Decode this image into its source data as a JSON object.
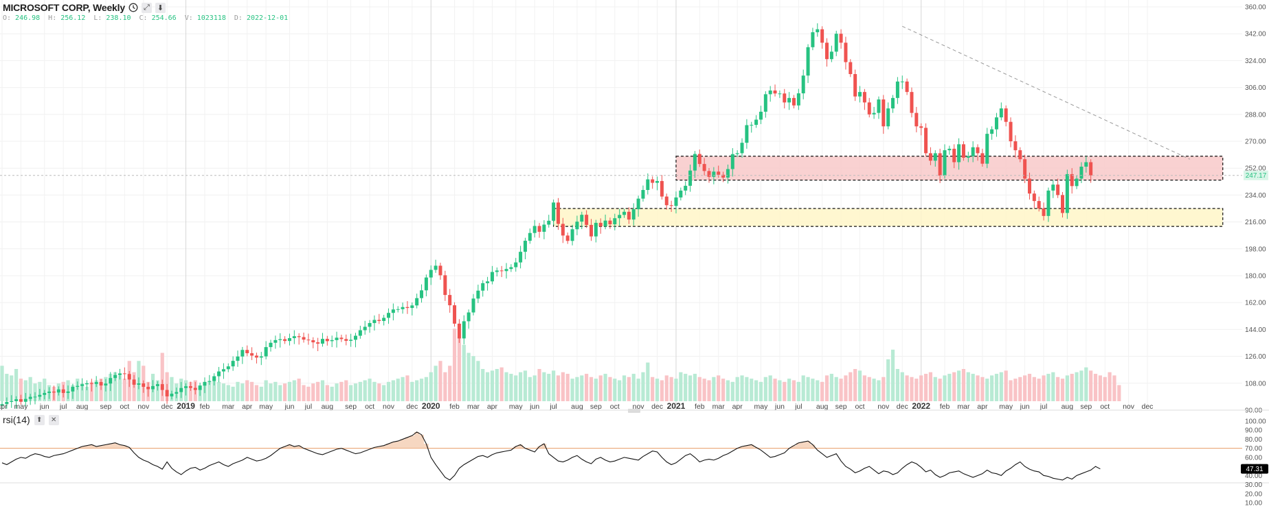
{
  "header": {
    "title": "MICROSOFT CORP, Weekly",
    "icons": [
      "clock-icon",
      "expand-icon",
      "download-icon"
    ],
    "ohlc": [
      {
        "key": "O:",
        "value": "246.98"
      },
      {
        "key": "H:",
        "value": "256.12"
      },
      {
        "key": "L:",
        "value": "238.10"
      },
      {
        "key": "C:",
        "value": "254.66"
      },
      {
        "key": "V:",
        "value": "1023118"
      },
      {
        "key": "D:",
        "value": "2022-12-01"
      }
    ]
  },
  "indicator": {
    "label": "rsi(14)",
    "current_value": "47.31",
    "icons": [
      "arrow-up-icon",
      "close-icon"
    ]
  },
  "colors": {
    "up": "#26c281",
    "down": "#ef5350",
    "volume_up": "#b8ead4",
    "volume_down": "#f9c3c6",
    "resistance_zone": "#f8c9c9",
    "support_zone": "#fff6c8"
  },
  "chart_data": {
    "type": "candlestick",
    "title": "MICROSOFT CORP, Weekly",
    "price_axis": {
      "ylim": [
        90,
        360
      ],
      "ticks": [
        "90.00",
        "108.00",
        "126.00",
        "144.00",
        "162.00",
        "180.00",
        "198.00",
        "216.00",
        "234.00",
        "252.00",
        "270.00",
        "288.00",
        "306.00",
        "324.00",
        "342.00",
        "360.00"
      ]
    },
    "price_label": "247.17",
    "time_axis": {
      "labels": [
        "apr",
        "may",
        "jun",
        "jul",
        "aug",
        "sep",
        "oct",
        "nov",
        "dec",
        "2019",
        "feb",
        "mar",
        "apr",
        "may",
        "jun",
        "jul",
        "aug",
        "sep",
        "oct",
        "nov",
        "dec",
        "2020",
        "feb",
        "mar",
        "apr",
        "may",
        "jun",
        "jul",
        "aug",
        "sep",
        "oct",
        "nov",
        "dec",
        "2021",
        "feb",
        "mar",
        "apr",
        "may",
        "jun",
        "jul",
        "aug",
        "sep",
        "oct",
        "nov",
        "dec",
        "2022",
        "feb",
        "mar",
        "apr",
        "may",
        "jun",
        "jul",
        "aug",
        "sep",
        "oct",
        "nov",
        "dec"
      ],
      "start_week": 0,
      "week_positions": [
        0,
        4,
        9,
        13,
        17,
        22,
        26,
        30,
        35,
        39,
        43,
        48,
        52,
        56,
        61,
        65,
        69,
        74,
        78,
        82,
        87,
        91,
        96,
        100,
        104,
        109,
        113,
        117,
        122,
        126,
        130,
        135,
        139,
        143,
        148,
        152,
        156,
        161,
        165,
        169,
        174,
        178,
        182,
        187,
        191,
        195,
        200,
        204,
        208,
        213,
        217,
        221,
        226,
        230,
        234,
        239,
        243
      ],
      "separator_labels": [
        "2019",
        "2020",
        "2021",
        "2022"
      ]
    },
    "ohlc_close": [
      94.0,
      95.5,
      96.0,
      97.3,
      95.6,
      97.5,
      98.9,
      99.0,
      100.2,
      101.5,
      102.4,
      101.8,
      103.9,
      101.5,
      102.5,
      105.6,
      106.2,
      107.3,
      108.0,
      107.5,
      108.8,
      106.5,
      107.8,
      111.5,
      113.5,
      114.6,
      114.2,
      110.5,
      107.0,
      107.9,
      105.6,
      104.0,
      106.1,
      107.4,
      103.5,
      99.2,
      101.0,
      102.1,
      104.8,
      106.0,
      104.9,
      103.5,
      106.4,
      108.9,
      109.5,
      112.7,
      115.9,
      117.4,
      119.3,
      123.0,
      125.9,
      130.3,
      128.1,
      126.5,
      125.2,
      126.0,
      132.2,
      135.1,
      136.9,
      137.5,
      136.3,
      138.2,
      139.5,
      138.9,
      137.2,
      136.8,
      135.4,
      134.5,
      137.7,
      136.2,
      136.9,
      138.5,
      137.6,
      136.4,
      137.1,
      139.8,
      143.5,
      145.8,
      148.3,
      150.4,
      149.7,
      151.8,
      155.1,
      157.4,
      157.6,
      159.0,
      158.4,
      160.1,
      165.0,
      170.2,
      178.8,
      183.9,
      186.7,
      180.3,
      167.1,
      160.2,
      147.9,
      138.0,
      149.5,
      155.4,
      164.7,
      170.0,
      175.0,
      176.2,
      182.5,
      183.5,
      183.1,
      184.5,
      185.7,
      188.9,
      196.0,
      203.4,
      208.6,
      213.3,
      209.4,
      214.2,
      216.8,
      229.0,
      214.7,
      206.9,
      203.3,
      211.1,
      216.2,
      220.8,
      214.0,
      206.3,
      215.4,
      213.1,
      216.9,
      214.4,
      218.5,
      220.7,
      222.8,
      217.6,
      224.5,
      231.6,
      237.4,
      244.5,
      242.2,
      243.4,
      233.0,
      227.2,
      226.7,
      232.4,
      237.0,
      240.2,
      250.4,
      261.5,
      254.8,
      250.1,
      246.2,
      249.7,
      247.6,
      245.7,
      251.4,
      261.4,
      262.0,
      269.0,
      280.8,
      281.0,
      284.5,
      289.8,
      301.5,
      304.0,
      302.0,
      302.0,
      296.0,
      299.0,
      294.0,
      302.1,
      314.0,
      333.0,
      343.0,
      345.0,
      336.0,
      325.0,
      330.0,
      342.0,
      336.0,
      323.0,
      315.0,
      300.0,
      303.0,
      296.0,
      288.0,
      289.0,
      298.0,
      280.0,
      292.0,
      299.0,
      310.0,
      310.0,
      303.0,
      289.0,
      280.0,
      279.0,
      262.0,
      257.0,
      262.0,
      247.0,
      264.0,
      265.0,
      256.0,
      268.0,
      259.0,
      260.0,
      266.0,
      262.0,
      255.0,
      275.0,
      278.0,
      286.0,
      292.0,
      283.0,
      270.0,
      264.0,
      258.0,
      245.0,
      235.0,
      230.0,
      225.0,
      220.0,
      237.0,
      241.0,
      234.0,
      222.0,
      248.0,
      240.0,
      245.0,
      253.0,
      256.0,
      247.2
    ],
    "ohlc_open": [
      93.0,
      94.0,
      95.5,
      96.0,
      97.3,
      95.6,
      97.5,
      98.9,
      99.0,
      100.2,
      101.5,
      102.4,
      101.8,
      103.9,
      101.5,
      102.5,
      105.6,
      106.2,
      107.3,
      108.0,
      107.5,
      108.8,
      106.5,
      107.8,
      111.5,
      113.5,
      114.6,
      114.2,
      110.5,
      107.0,
      107.9,
      105.6,
      104.0,
      106.1,
      107.4,
      103.5,
      99.2,
      101.0,
      102.1,
      104.8,
      106.0,
      104.9,
      103.5,
      106.4,
      108.9,
      109.5,
      112.7,
      115.9,
      117.4,
      119.3,
      123.0,
      125.9,
      130.3,
      128.1,
      126.5,
      125.2,
      126.0,
      132.2,
      135.1,
      136.9,
      137.5,
      136.3,
      138.2,
      139.5,
      138.9,
      137.2,
      136.8,
      135.4,
      134.5,
      137.7,
      136.2,
      136.9,
      138.5,
      137.6,
      136.4,
      137.1,
      139.8,
      143.5,
      145.8,
      148.3,
      150.4,
      149.7,
      151.8,
      155.1,
      157.4,
      157.6,
      159.0,
      158.4,
      160.1,
      165.0,
      170.2,
      178.8,
      183.9,
      186.7,
      180.3,
      167.1,
      160.2,
      147.9,
      138.0,
      149.5,
      155.4,
      164.7,
      170.0,
      175.0,
      176.2,
      182.5,
      183.5,
      183.1,
      184.5,
      185.7,
      188.9,
      196.0,
      203.4,
      208.6,
      213.3,
      209.4,
      214.2,
      216.8,
      229.0,
      214.7,
      206.9,
      203.3,
      211.1,
      216.2,
      220.8,
      214.0,
      206.3,
      215.4,
      213.1,
      216.9,
      214.4,
      218.5,
      220.7,
      222.8,
      217.6,
      224.5,
      231.6,
      237.4,
      244.5,
      242.2,
      243.4,
      233.0,
      227.2,
      226.7,
      232.4,
      237.0,
      240.2,
      250.4,
      261.5,
      254.8,
      250.1,
      246.2,
      249.7,
      247.6,
      245.7,
      251.4,
      261.4,
      262.0,
      269.0,
      280.8,
      281.0,
      284.5,
      289.8,
      301.5,
      304.0,
      302.0,
      302.0,
      296.0,
      299.0,
      294.0,
      302.1,
      314.0,
      333.0,
      343.0,
      345.0,
      336.0,
      325.0,
      330.0,
      342.0,
      336.0,
      323.0,
      315.0,
      300.0,
      303.0,
      296.0,
      288.0,
      289.0,
      298.0,
      280.0,
      292.0,
      299.0,
      310.0,
      310.0,
      303.0,
      289.0,
      280.0,
      279.0,
      262.0,
      257.0,
      262.0,
      247.0,
      264.0,
      265.0,
      256.0,
      268.0,
      259.0,
      260.0,
      266.0,
      262.0,
      255.0,
      275.0,
      278.0,
      286.0,
      292.0,
      283.0,
      270.0,
      264.0,
      258.0,
      245.0,
      235.0,
      230.0,
      225.0,
      220.0,
      237.0,
      241.0,
      234.0,
      222.0,
      248.0,
      240.0,
      245.0,
      253.0,
      256.0
    ],
    "volume": [
      22,
      17,
      16,
      20,
      14,
      13,
      15,
      11,
      12,
      14,
      10,
      9,
      11,
      12,
      13,
      10,
      14,
      11,
      9,
      12,
      13,
      14,
      15,
      17,
      18,
      16,
      14,
      25,
      18,
      25,
      22,
      12,
      17,
      13,
      30,
      18,
      15,
      11,
      14,
      13,
      12,
      13,
      10,
      11,
      12,
      14,
      12,
      11,
      10,
      9,
      12,
      11,
      13,
      12,
      10,
      9,
      13,
      11,
      12,
      10,
      11,
      12,
      13,
      14,
      10,
      9,
      11,
      12,
      13,
      10,
      9,
      11,
      12,
      13,
      10,
      11,
      12,
      13,
      14,
      12,
      11,
      10,
      12,
      13,
      14,
      15,
      16,
      12,
      13,
      14,
      15,
      18,
      22,
      25,
      18,
      22,
      45,
      40,
      35,
      30,
      28,
      25,
      20,
      18,
      19,
      20,
      21,
      18,
      17,
      16,
      18,
      19,
      15,
      16,
      20,
      18,
      17,
      19,
      16,
      18,
      17,
      14,
      15,
      16,
      17,
      15,
      14,
      16,
      17,
      15,
      14,
      13,
      16,
      15,
      17,
      14,
      18,
      24,
      15,
      14,
      13,
      16,
      15,
      14,
      18,
      17,
      16,
      17,
      15,
      14,
      13,
      15,
      16,
      14,
      13,
      12,
      15,
      16,
      15,
      14,
      13,
      12,
      15,
      16,
      14,
      13,
      12,
      14,
      13,
      12,
      16,
      15,
      14,
      13,
      12,
      16,
      17,
      15,
      14,
      16,
      18,
      20,
      19,
      16,
      15,
      14,
      13,
      15,
      26,
      32,
      20,
      18,
      16,
      15,
      14,
      16,
      17,
      18,
      15,
      14,
      16,
      17,
      18,
      19,
      20,
      18,
      17,
      16,
      15,
      14,
      16,
      17,
      18,
      19,
      13,
      14,
      15,
      16,
      17,
      15,
      14,
      16,
      17,
      18,
      15,
      14,
      16,
      17,
      18,
      19,
      21,
      19,
      17,
      16,
      15,
      18,
      16,
      10
    ],
    "support_resistance_zones": [
      {
        "name": "resistance",
        "from_week": 143,
        "to_week": 259,
        "low": 244,
        "high": 260
      },
      {
        "name": "support",
        "from_week": 117,
        "to_week": 259,
        "low": 213,
        "high": 225
      }
    ],
    "trendline": {
      "from_week": 191,
      "from_price": 347,
      "to_week": 252,
      "to_price": 258
    },
    "rsi": {
      "ylim": [
        10,
        100
      ],
      "ticks": [
        "10.00",
        "20.00",
        "30.00",
        "40.00",
        "50.00",
        "60.00",
        "70.00",
        "80.00",
        "90.00",
        "100.00"
      ],
      "overbought": 70,
      "values": [
        54,
        52,
        55,
        58,
        60,
        59,
        62,
        64,
        63,
        61,
        60,
        62,
        63,
        64,
        66,
        68,
        70,
        72,
        73,
        74,
        72,
        73,
        74,
        75,
        76,
        74,
        73,
        71,
        65,
        60,
        57,
        55,
        52,
        50,
        47,
        55,
        48,
        44,
        41,
        45,
        48,
        49,
        46,
        48,
        51,
        53,
        55,
        52,
        50,
        53,
        55,
        57,
        60,
        58,
        56,
        57,
        59,
        62,
        66,
        70,
        72,
        74,
        72,
        73,
        70,
        68,
        66,
        64,
        63,
        65,
        67,
        69,
        70,
        68,
        66,
        64,
        65,
        67,
        69,
        71,
        72,
        73,
        75,
        77,
        78,
        80,
        82,
        84,
        88,
        85,
        75,
        60,
        52,
        45,
        38,
        35,
        40,
        48,
        52,
        55,
        58,
        61,
        62,
        60,
        63,
        65,
        66,
        67,
        68,
        72,
        74,
        70,
        68,
        66,
        72,
        75,
        64,
        60,
        56,
        55,
        57,
        60,
        62,
        58,
        55,
        53,
        58,
        60,
        57,
        55,
        56,
        58,
        60,
        59,
        58,
        57,
        61,
        64,
        67,
        66,
        60,
        55,
        52,
        54,
        58,
        62,
        64,
        60,
        55,
        57,
        58,
        57,
        59,
        62,
        64,
        67,
        70,
        72,
        73,
        74,
        71,
        68,
        64,
        60,
        61,
        63,
        65,
        70,
        73,
        76,
        77,
        78,
        74,
        68,
        64,
        60,
        62,
        64,
        56,
        50,
        47,
        43,
        45,
        48,
        50,
        46,
        42,
        45,
        44,
        41,
        43,
        48,
        52,
        55,
        53,
        49,
        44,
        46,
        41,
        38,
        40,
        43,
        44,
        45,
        42,
        40,
        38,
        40,
        42,
        46,
        43,
        42,
        40,
        45,
        48,
        52,
        55,
        50,
        47,
        45,
        44,
        40,
        39,
        37,
        36,
        35,
        38,
        36,
        40,
        42,
        44,
        46,
        50,
        47.3
      ]
    }
  }
}
